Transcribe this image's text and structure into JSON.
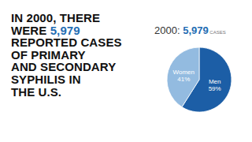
{
  "chart_data": {
    "type": "pie",
    "title": "IN 2000, THERE\nWERE 5,979\nREPORTED CASES\nOF PRIMARY\nAND SECONDARY\nSYPHILIS IN\nTHE U.S.",
    "subtitle": "2000: 5,979 CASES",
    "categories": [
      "Men",
      "Women"
    ],
    "values": [
      59,
      41
    ],
    "value_labels": [
      "59%",
      "41%"
    ],
    "colors": [
      "#1c5ea6",
      "#93bbe0"
    ],
    "data_labels": true
  }
}
